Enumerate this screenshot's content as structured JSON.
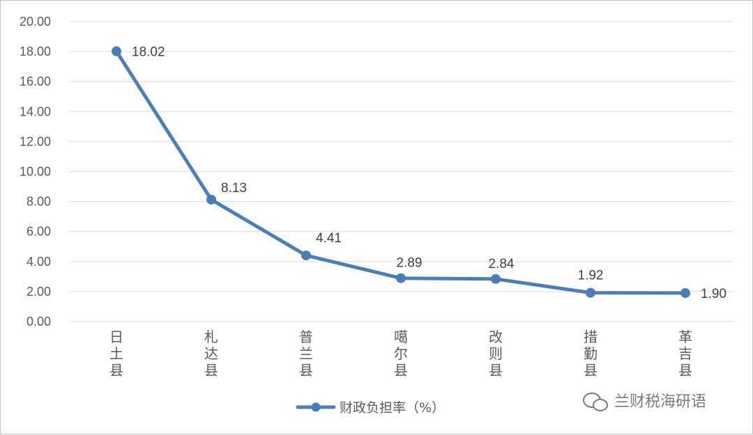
{
  "chart_data": {
    "type": "line",
    "categories": [
      "日土县",
      "札达县",
      "普兰县",
      "噶尔县",
      "改则县",
      "措勤县",
      "革吉县"
    ],
    "series": [
      {
        "name": "财政负担率（%）",
        "values": [
          18.02,
          8.13,
          4.41,
          2.89,
          2.84,
          1.92,
          1.9
        ],
        "color": "#4a7ebb"
      }
    ],
    "data_labels": [
      "18.02",
      "8.13",
      "4.41",
      "2.89",
      "2.84",
      "1.92",
      "1.90"
    ],
    "y_ticks": [
      "0.00",
      "2.00",
      "4.00",
      "6.00",
      "8.00",
      "10.00",
      "12.00",
      "14.00",
      "16.00",
      "18.00",
      "20.00"
    ],
    "ylim": [
      0,
      20
    ],
    "title": "",
    "xlabel": "",
    "ylabel": "",
    "grid": true,
    "legend_position": "bottom",
    "gridline_color": "#d9d9d9",
    "watermark": {
      "icon": "wechat-icon",
      "text": "兰财税海研语"
    }
  }
}
